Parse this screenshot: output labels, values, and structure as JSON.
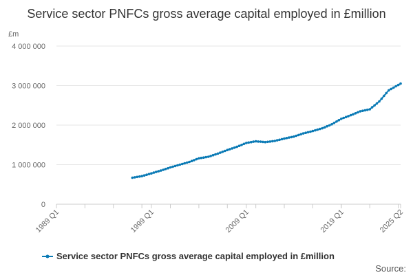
{
  "chart_data": {
    "type": "line",
    "title": "Service sector PNFCs gross average capital employed in £million",
    "ylabel": "£m",
    "xlabel": "",
    "ylim": [
      0,
      4000000
    ],
    "yticks": [
      0,
      1000000,
      2000000,
      3000000,
      4000000
    ],
    "ytick_labels": [
      "0",
      "1 000 000",
      "2 000 000",
      "3 000 000",
      "4 000 000"
    ],
    "xlim": [
      "1989 Q1",
      "2025 Q2"
    ],
    "xtick_labels": [
      "1989 Q1",
      "1999 Q1",
      "2009 Q1",
      "2019 Q1",
      "2025 Q2"
    ],
    "grid": true,
    "legend_position": "bottom",
    "series": [
      {
        "name": "Service sector PNFCs gross average capital employed in £million",
        "color": "#0a7ab5",
        "points": [
          [
            "1997 Q1",
            670000
          ],
          [
            "1998 Q1",
            710000
          ],
          [
            "1999 Q1",
            780000
          ],
          [
            "2000 Q1",
            850000
          ],
          [
            "2001 Q1",
            930000
          ],
          [
            "2002 Q1",
            1000000
          ],
          [
            "2003 Q1",
            1070000
          ],
          [
            "2004 Q1",
            1160000
          ],
          [
            "2005 Q1",
            1200000
          ],
          [
            "2006 Q1",
            1280000
          ],
          [
            "2007 Q1",
            1370000
          ],
          [
            "2008 Q1",
            1450000
          ],
          [
            "2009 Q1",
            1550000
          ],
          [
            "2010 Q1",
            1590000
          ],
          [
            "2011 Q1",
            1570000
          ],
          [
            "2012 Q1",
            1600000
          ],
          [
            "2013 Q1",
            1660000
          ],
          [
            "2014 Q1",
            1710000
          ],
          [
            "2015 Q1",
            1790000
          ],
          [
            "2016 Q1",
            1850000
          ],
          [
            "2017 Q1",
            1920000
          ],
          [
            "2018 Q1",
            2020000
          ],
          [
            "2019 Q1",
            2160000
          ],
          [
            "2020 Q1",
            2250000
          ],
          [
            "2021 Q1",
            2350000
          ],
          [
            "2022 Q1",
            2400000
          ],
          [
            "2023 Q1",
            2600000
          ],
          [
            "2024 Q1",
            2880000
          ],
          [
            "2025 Q2",
            3050000
          ]
        ]
      }
    ]
  },
  "source_text": "Source:"
}
